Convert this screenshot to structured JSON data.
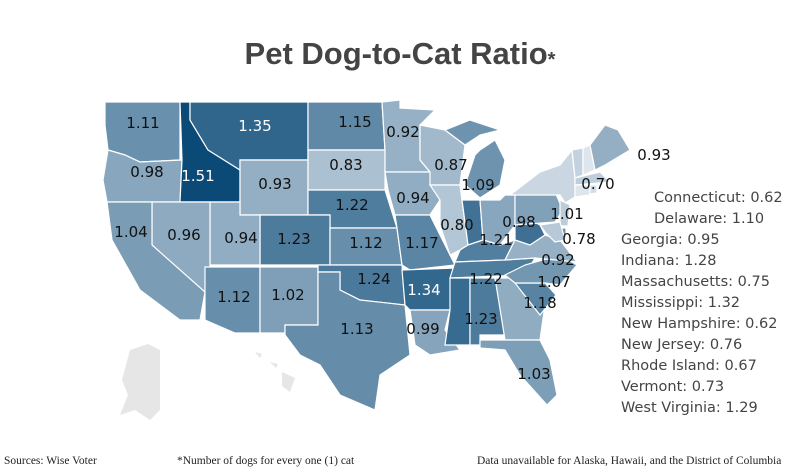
{
  "title": "Pet Dog-to-Cat Ratio",
  "title_marker": "*",
  "color_scale": {
    "low": "#dde5ed",
    "high": "#0b4a77",
    "min": 0.62,
    "max": 1.51,
    "no_data": "#e6e6e6"
  },
  "states": {
    "WA": 1.11,
    "OR": 0.98,
    "ID": 1.51,
    "MT": 1.35,
    "WY": 0.93,
    "ND": 1.15,
    "SD": 0.83,
    "NE": 1.22,
    "CO": 1.23,
    "UT": 0.94,
    "NV": 0.96,
    "CA": 1.04,
    "AZ": 1.12,
    "NM": 1.02,
    "KS": 1.12,
    "OK": 1.24,
    "TX": 1.13,
    "MN": 0.92,
    "IA": 0.94,
    "MO": 1.17,
    "AR": 1.34,
    "LA": 0.99,
    "WI": 0.87,
    "IL": 0.8,
    "IN": 1.28,
    "MI": 1.09,
    "OH": 0.98,
    "KY": 1.21,
    "TN": 1.22,
    "MS": 1.32,
    "AL": 1.23,
    "GA": 0.95,
    "FL": 1.03,
    "SC": 1.18,
    "NC": 1.07,
    "VA": 0.92,
    "WV": 1.29,
    "PA": 1.01,
    "NY": 0.7,
    "VT": 0.73,
    "NH": 0.62,
    "ME": 0.93,
    "MA": 0.75,
    "CT": 0.62,
    "RI": 0.67,
    "NJ": 0.76,
    "DE": 1.1,
    "MD": 0.78
  },
  "map_labels": {
    "WA": "1.11",
    "OR": "0.98",
    "ID": "1.51",
    "MT": "1.35",
    "WY": "0.93",
    "ND": "1.15",
    "SD": "0.83",
    "NE": "1.22",
    "CO": "1.23",
    "UT": "0.94",
    "NV": "0.96",
    "CA": "1.04",
    "AZ": "1.12",
    "NM": "1.02",
    "KS": "1.12",
    "OK": "1.24",
    "TX": "1.13",
    "MN": "0.92",
    "IA": "0.94",
    "MO": "1.17",
    "AR": "1.34",
    "LA": "0.99",
    "WI": "0.87",
    "IL": "0.80",
    "IN": "",
    "MI": "1.09",
    "OH": "0.98",
    "KY": "1.21",
    "TN": "1.22",
    "MS": "",
    "AL": "1.23",
    "GA": "",
    "FL": "1.03",
    "SC": "1.18",
    "NC": "1.07",
    "VA": "0.92",
    "PA": "1.01",
    "NY": "0.70",
    "ME": "0.93",
    "MD": "0.78"
  },
  "callouts": [
    "Connecticut: 0.62",
    "Delaware: 1.10",
    "Georgia: 0.95",
    "Indiana: 1.28",
    "Massachusetts: 0.75",
    "Mississippi: 1.32",
    "New Hampshire: 0.62",
    "New Jersey: 0.76",
    "Rhode Island: 0.67",
    "Vermont: 0.73",
    "West Virginia: 1.29"
  ],
  "footer": {
    "source": "Sources: Wise Voter",
    "note": "*Number of dogs for every one (1) cat",
    "unavailable": "Data unavailable for Alaska, Hawaii, and the District of Columbia"
  }
}
